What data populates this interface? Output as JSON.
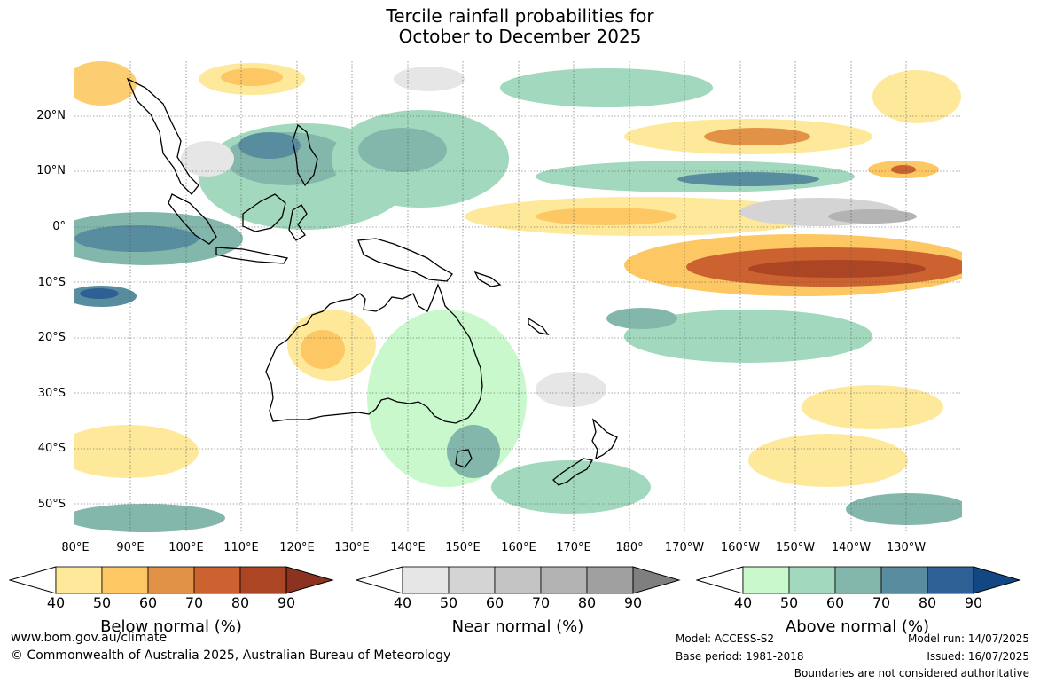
{
  "title": {
    "line1": "Tercile rainfall probabilities for",
    "line2": "October to December 2025"
  },
  "map": {
    "lat_labels": [
      "20°N",
      "10°N",
      "0°",
      "10°S",
      "20°S",
      "30°S",
      "40°S",
      "50°S"
    ],
    "lon_labels": [
      "80°E",
      "90°E",
      "100°E",
      "110°E",
      "120°E",
      "130°E",
      "140°E",
      "150°E",
      "160°E",
      "170°E",
      "180°",
      "170°W",
      "160°W",
      "150°W",
      "140°W",
      "130°W"
    ],
    "gridlines": true
  },
  "colorbars": [
    {
      "name": "Below normal (%)",
      "ticks": [
        "40",
        "50",
        "60",
        "70",
        "80",
        "90"
      ],
      "colors": [
        "#ffffff",
        "#fee99b",
        "#fdc863",
        "#e29246",
        "#cb6230",
        "#ab4524",
        "#8c3220"
      ]
    },
    {
      "name": "Near normal (%)",
      "ticks": [
        "40",
        "50",
        "60",
        "70",
        "80",
        "90"
      ],
      "colors": [
        "#ffffff",
        "#e6e6e6",
        "#d4d4d4",
        "#c3c3c3",
        "#b3b3b3",
        "#a0a0a0",
        "#7f7f7f"
      ]
    },
    {
      "name": "Above normal (%)",
      "ticks": [
        "40",
        "50",
        "60",
        "70",
        "80",
        "90"
      ],
      "colors": [
        "#ffffff",
        "#c8f8cc",
        "#a2d8bd",
        "#84b7ab",
        "#578d9f",
        "#2e6095",
        "#124784"
      ]
    }
  ],
  "footer": {
    "website": "www.bom.gov.au/climate",
    "copyright": "© Commonwealth of Australia 2025, Australian Bureau of Meteorology",
    "model": "Model: ACCESS-S2",
    "base_period": "Base period: 1981-2018",
    "model_run": "Model run: 14/07/2025",
    "issued": "Issued: 16/07/2025",
    "disclaimer": "Boundaries are not considered authoritative"
  }
}
